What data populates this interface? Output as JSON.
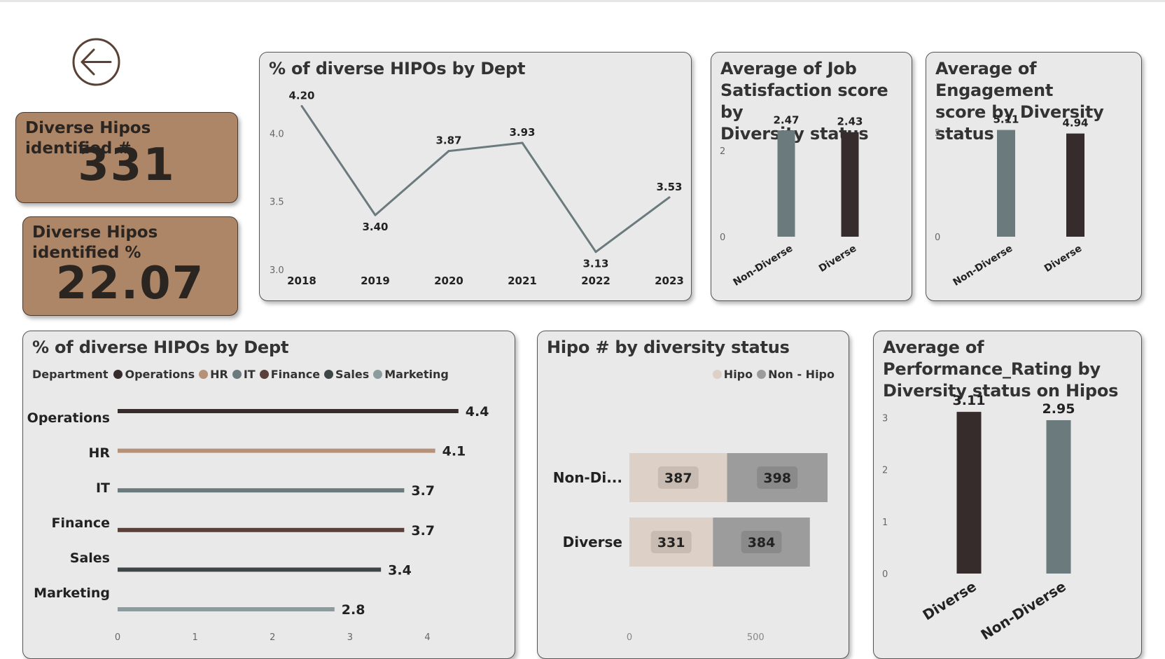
{
  "kpis": {
    "count_label": "Diverse Hipos identified #",
    "count_value": "331",
    "pct_label": "Diverse Hipos identified %",
    "pct_value": "22.07"
  },
  "icons": {
    "back": "arrow-left-circle-icon"
  },
  "colors": {
    "card_bg": "#e9e9e9",
    "kpi_bg": "#ad8667",
    "slate": "#6b7a7c",
    "dark": "#352c2b",
    "hipo": "#ddd0c6",
    "non_hipo": "#9c9c9c"
  },
  "line_card": {
    "title": "% of diverse HIPOs by Dept"
  },
  "job_card": {
    "title_lines": [
      "Average of Job",
      "Satisfaction score by",
      "Diversity status"
    ]
  },
  "eng_card": {
    "title_lines": [
      "Average of Engagement",
      "score by Diversity",
      "status"
    ]
  },
  "dept_card": {
    "title": "% of diverse HIPOs by Dept"
  },
  "hipo_card": {
    "title": "Hipo # by diversity status"
  },
  "perf_card": {
    "title_lines": [
      "Average of",
      "Performance_Rating by",
      "Diversity status on Hipos"
    ]
  },
  "chart_data": [
    {
      "id": "line",
      "type": "line",
      "title": "% of diverse HIPOs by Dept",
      "x": [
        "2018",
        "2019",
        "2020",
        "2021",
        "2022",
        "2023"
      ],
      "values": [
        4.2,
        3.4,
        3.87,
        3.93,
        3.13,
        3.53
      ],
      "labels": [
        "4.20",
        "3.40",
        "3.87",
        "3.93",
        "3.13",
        "3.53"
      ],
      "ylim": [
        3.0,
        4.3
      ],
      "yticks": [
        "3.0",
        "3.5",
        "4.0"
      ],
      "color": "#6b7a7c"
    },
    {
      "id": "job",
      "type": "bar",
      "title": "Average of Job Satisfaction score by Diversity status",
      "categories": [
        "Non-Diverse",
        "Diverse"
      ],
      "values": [
        2.47,
        2.43
      ],
      "labels": [
        "2.47",
        "2.43"
      ],
      "ylim": [
        0,
        2.8
      ],
      "yticks": [
        "0",
        "2"
      ],
      "colors": [
        "#6b7a7c",
        "#352c2b"
      ]
    },
    {
      "id": "eng",
      "type": "bar",
      "title": "Average of Engagement score by Diversity status",
      "categories": [
        "Non-Diverse",
        "Diverse"
      ],
      "values": [
        5.11,
        4.94
      ],
      "labels": [
        "5.11",
        "4.94"
      ],
      "ylim": [
        0,
        5.8
      ],
      "yticks": [
        "0",
        "5"
      ],
      "colors": [
        "#6b7a7c",
        "#352c2b"
      ]
    },
    {
      "id": "dept",
      "type": "bar",
      "orientation": "horizontal",
      "title": "% of diverse HIPOs by Dept",
      "legend_title": "Department",
      "categories": [
        "Operations",
        "HR",
        "IT",
        "Finance",
        "Sales",
        "Marketing"
      ],
      "values": [
        4.4,
        4.1,
        3.7,
        3.7,
        3.4,
        2.8
      ],
      "labels": [
        "4.4",
        "4.1",
        "3.7",
        "3.7",
        "3.4",
        "2.8"
      ],
      "colors": [
        "#352c2b",
        "#b5917a",
        "#6b7a7c",
        "#5a403a",
        "#3f4647",
        "#8b9b9e"
      ],
      "xlim": [
        0,
        4.7
      ],
      "xticks": [
        "0",
        "1",
        "2",
        "3",
        "4"
      ]
    },
    {
      "id": "hipo",
      "type": "bar",
      "orientation": "horizontal",
      "stacked": true,
      "title": "Hipo # by diversity status",
      "categories": [
        "Non-Di...",
        "Diverse"
      ],
      "series": [
        {
          "name": "Hipo",
          "values": [
            387,
            331
          ],
          "labels": [
            "387",
            "331"
          ],
          "color": "#ddd0c6"
        },
        {
          "name": "Non - Hipo",
          "values": [
            398,
            384
          ],
          "labels": [
            "398",
            "384"
          ],
          "color": "#9c9c9c"
        }
      ],
      "xlim": [
        0,
        785
      ],
      "xticks": [
        "0",
        "500"
      ],
      "legend": "top-right"
    },
    {
      "id": "perf",
      "type": "bar",
      "title": "Average of Performance_Rating by Diversity status on Hipos",
      "categories": [
        "Diverse",
        "Non-Diverse"
      ],
      "values": [
        3.11,
        2.95
      ],
      "labels": [
        "3.11",
        "2.95"
      ],
      "ylim": [
        0,
        3.3
      ],
      "yticks": [
        "0",
        "1",
        "2",
        "3"
      ],
      "colors": [
        "#352c2b",
        "#6b7a7c"
      ]
    }
  ]
}
